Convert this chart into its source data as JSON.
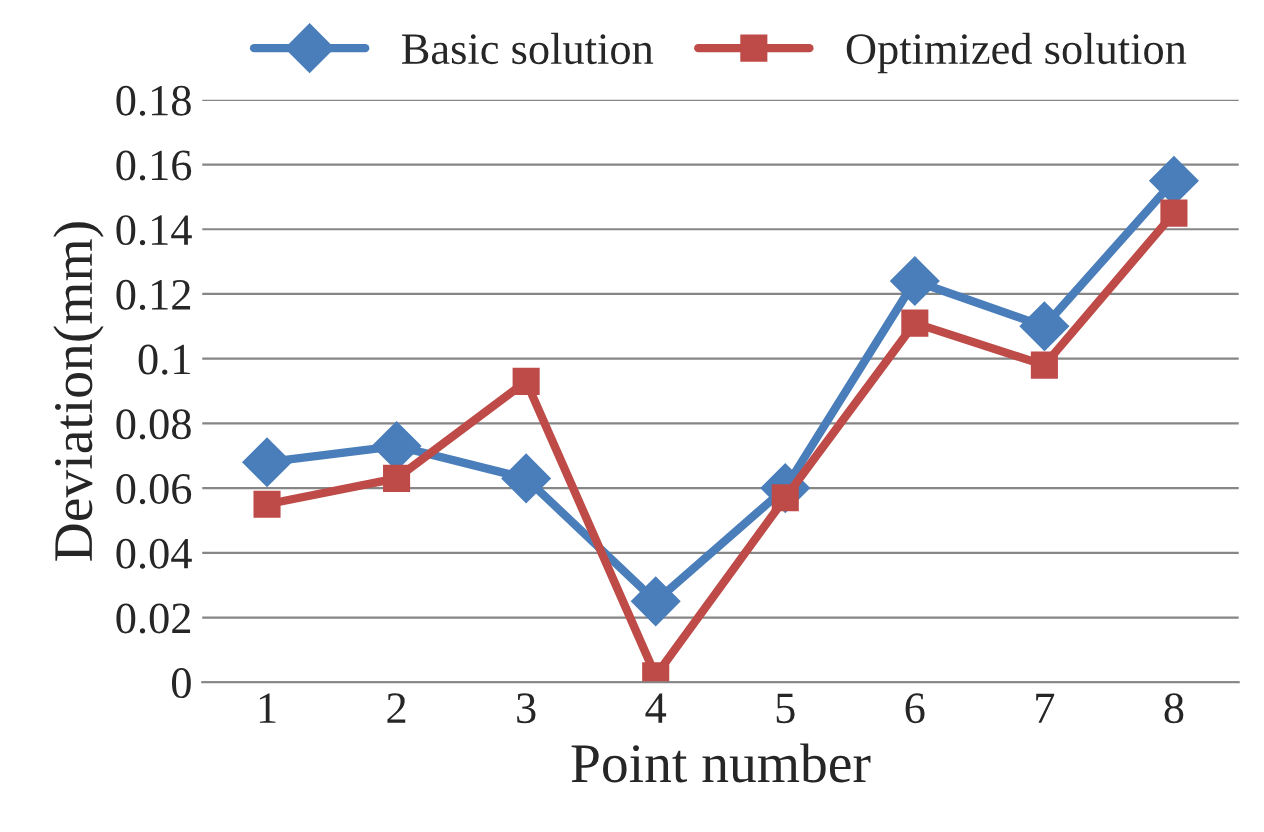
{
  "chart_data": {
    "type": "line",
    "xlabel": "Point number",
    "ylabel": "Deviation(mm)",
    "categories": [
      "1",
      "2",
      "3",
      "4",
      "5",
      "6",
      "7",
      "8"
    ],
    "series": [
      {
        "name": "Basic solution",
        "color": "#4a7ebb",
        "marker": "diamond",
        "values": [
          0.068,
          0.073,
          0.063,
          0.025,
          0.06,
          0.124,
          0.11,
          0.155
        ]
      },
      {
        "name": "Optimized solution",
        "color": "#be4b48",
        "marker": "square",
        "values": [
          0.055,
          0.063,
          0.093,
          0.002,
          0.057,
          0.111,
          0.098,
          0.145
        ]
      }
    ],
    "ylim": [
      0,
      0.18
    ],
    "yticks": [
      0,
      0.02,
      0.04,
      0.06,
      0.08,
      0.1,
      0.12,
      0.14,
      0.16,
      0.18
    ],
    "grid": "y",
    "legend": "top",
    "line_style": "solid"
  }
}
